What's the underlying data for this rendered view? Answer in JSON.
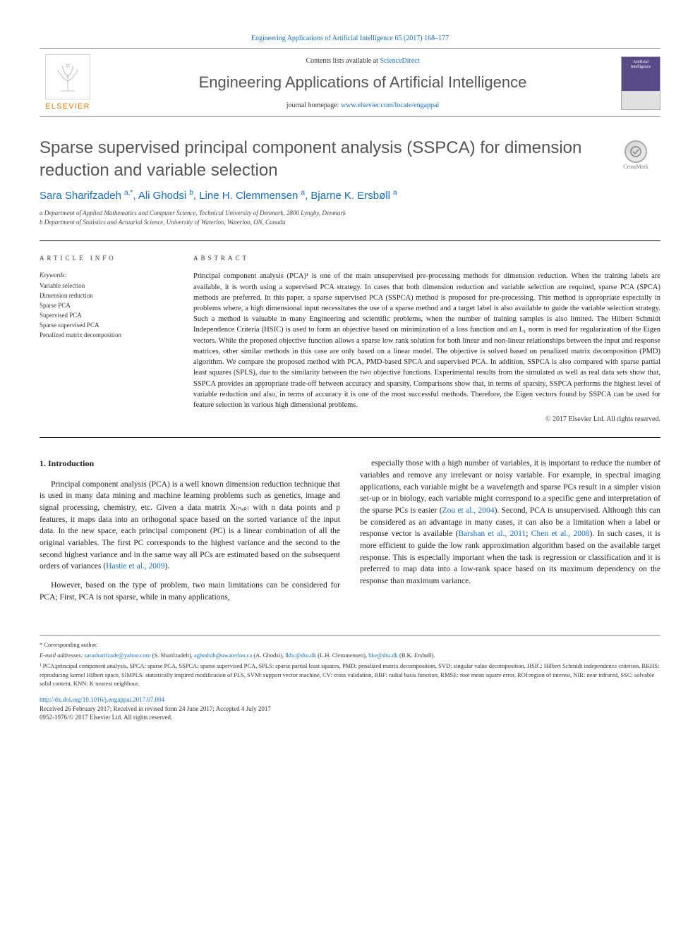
{
  "header": {
    "citation": "Engineering Applications of Artificial Intelligence 65 (2017) 168–177",
    "contents_prefix": "Contents lists available at ",
    "contents_link": "ScienceDirect",
    "journal_name": "Engineering Applications of Artificial Intelligence",
    "homepage_prefix": "journal homepage: ",
    "homepage_link": "www.elsevier.com/locate/engappai",
    "publisher_logo_text": "ELSEVIER",
    "cover_small_line1": "Artificial",
    "cover_small_line2": "Intelligence"
  },
  "crossmark_label": "CrossMark",
  "article": {
    "title": "Sparse supervised principal component analysis (SSPCA) for dimension reduction and variable selection",
    "authors_html": "Sara Sharifzadeh <sup>a,*</sup>, Ali Ghodsi <sup>b</sup>, Line H. Clemmensen <sup>a</sup>, Bjarne K. Ersbøll <sup>a</sup>",
    "affiliations": [
      "a Department of Applied Mathematics and Computer Science, Technical University of Denmark, 2800 Lyngby, Denmark",
      "b Department of Statistics and Actuarial Science, University of Waterloo, Waterloo, ON, Canada"
    ]
  },
  "info": {
    "label": "ARTICLE INFO",
    "keywords_head": "Keywords:",
    "keywords": [
      "Variable selection",
      "Dimension reduction",
      "Sparse PCA",
      "Supervised PCA",
      "Sparse supervised PCA",
      "Penalized matrix decomposition"
    ]
  },
  "abstract": {
    "label": "ABSTRACT",
    "text": "Principal component analysis (PCA)¹ is one of the main unsupervised pre-processing methods for dimension reduction. When the training labels are available, it is worth using a supervised PCA strategy. In cases that both dimension reduction and variable selection are required, sparse PCA (SPCA) methods are preferred. In this paper, a sparse supervised PCA (SSPCA) method is proposed for pre-processing. This method is appropriate especially in problems where, a high dimensional input necessitates the use of a sparse method and a target label is also available to guide the variable selection strategy. Such a method is valuable in many Engineering and scientific problems, when the number of training samples is also limited. The Hilbert Schmidt Independence Criteria (HSIC) is used to form an objective based on minimization of a loss function and an L₁ norm is used for regularization of the Eigen vectors. While the proposed objective function allows a sparse low rank solution for both linear and non-linear relationships between the input and response matrices, other similar methods in this case are only based on a linear model. The objective is solved based on penalized matrix decomposition (PMD) algorithm. We compare the proposed method with PCA, PMD-based SPCA and supervised PCA. In addition, SSPCA is also compared with sparse partial least squares (SPLS), due to the similarity between the two objective functions. Experimental results from the simulated as well as real data sets show that, SSPCA provides an appropriate trade-off between accuracy and sparsity. Comparisons show that, in terms of sparsity, SSPCA performs the highest level of variable reduction and also, in terms of accuracy it is one of the most successful methods. Therefore, the Eigen vectors found by SSPCA can be used for feature selection in various high dimensional problems.",
    "copyright": "© 2017 Elsevier Ltd. All rights reserved."
  },
  "body": {
    "section_num": "1.",
    "section_title": "Introduction",
    "p1": "Principal component analysis (PCA)   is a well known dimension reduction technique that is used in many data mining and machine learning problems such as genetics, image and signal processing, chemistry, etc. Given a data matrix X₍ₙₓₚ₎ with n data points and p features, it maps data into an orthogonal space based on the sorted variance of the input data. In the new space, each principal component (PC) is a linear combination of all the original variables. The first PC corresponds to the highest variance and the second to the second highest variance and in the same way all PCs are estimated based on the subsequent orders of variances  (Hastie et al., 2009).",
    "p2": "However, based on the type of problem, two main limitations can be considered for PCA; First, PCA is not sparse, while in many applications,",
    "p3": "especially those with a high number of variables, it is important to reduce the number of variables and remove any irrelevant or noisy variable. For example, in spectral imaging applications, each variable might be a wavelength and sparse PCs result in a simpler vision set-up or in biology, each variable might correspond to a specific gene and interpretation of the sparse PCs is easier  (Zou et al., 2004). Second, PCA is unsupervised. Although this can be considered as an advantage in many cases, it can also be a limitation when a label or response vector is available  (Barshan et al., 2011; Chen et al., 2008). In such cases, it is more efficient to guide the low rank approximation algorithm based on the available target response. This is especially important when the task is regression or classification and it is preferred to map data into a low-rank space based on its maximum dependency on the response than maximum variance."
  },
  "footnotes": {
    "corr": "* Corresponding author.",
    "email_label": "E-mail addresses: ",
    "emails": [
      {
        "addr": "sarasharifzade@yahoo.com",
        "who": "(S. Sharifzadeh)"
      },
      {
        "addr": "aghodsib@uwaterloo.ca",
        "who": "(A. Ghodsi)"
      },
      {
        "addr": "lkhc@dtu.dk",
        "who": "(L.H. Clemmensen)"
      },
      {
        "addr": "bke@dtu.dk",
        "who": "(B.K. Ersbøll)."
      }
    ],
    "abbrev": "¹ PCA:principal component analysis, SPCA: sparse PCA, SSPCA: sparse supervised PCA, SPLS: sparse partial least squares, PMD: penalized matrix decomposition, SVD: singular value decomposition, HSIC: Hilbert Schmidt independence criterion, RKHS: reproducing kernel Hilbert space, SIMPLS: statistically inspired modification of PLS, SVM: support vector machine, CV: cross validation, RBF: radial basis function, RMSE: root mean square error, ROI:region of interest, NIR: near infrared, SSC: solvable solid content, KNN: K nearest neighbour."
  },
  "doi": {
    "link": "http://dx.doi.org/10.1016/j.engappai.2017.07.004",
    "received": "Received 26 February 2017; Received in revised form 24 June 2017; Accepted 4 July 2017",
    "issn": "0952-1976/© 2017 Elsevier Ltd. All rights reserved."
  },
  "colors": {
    "link": "#1a6eb8",
    "elsevier_orange": "#e67817",
    "text": "#333333",
    "title_gray": "#555555"
  }
}
